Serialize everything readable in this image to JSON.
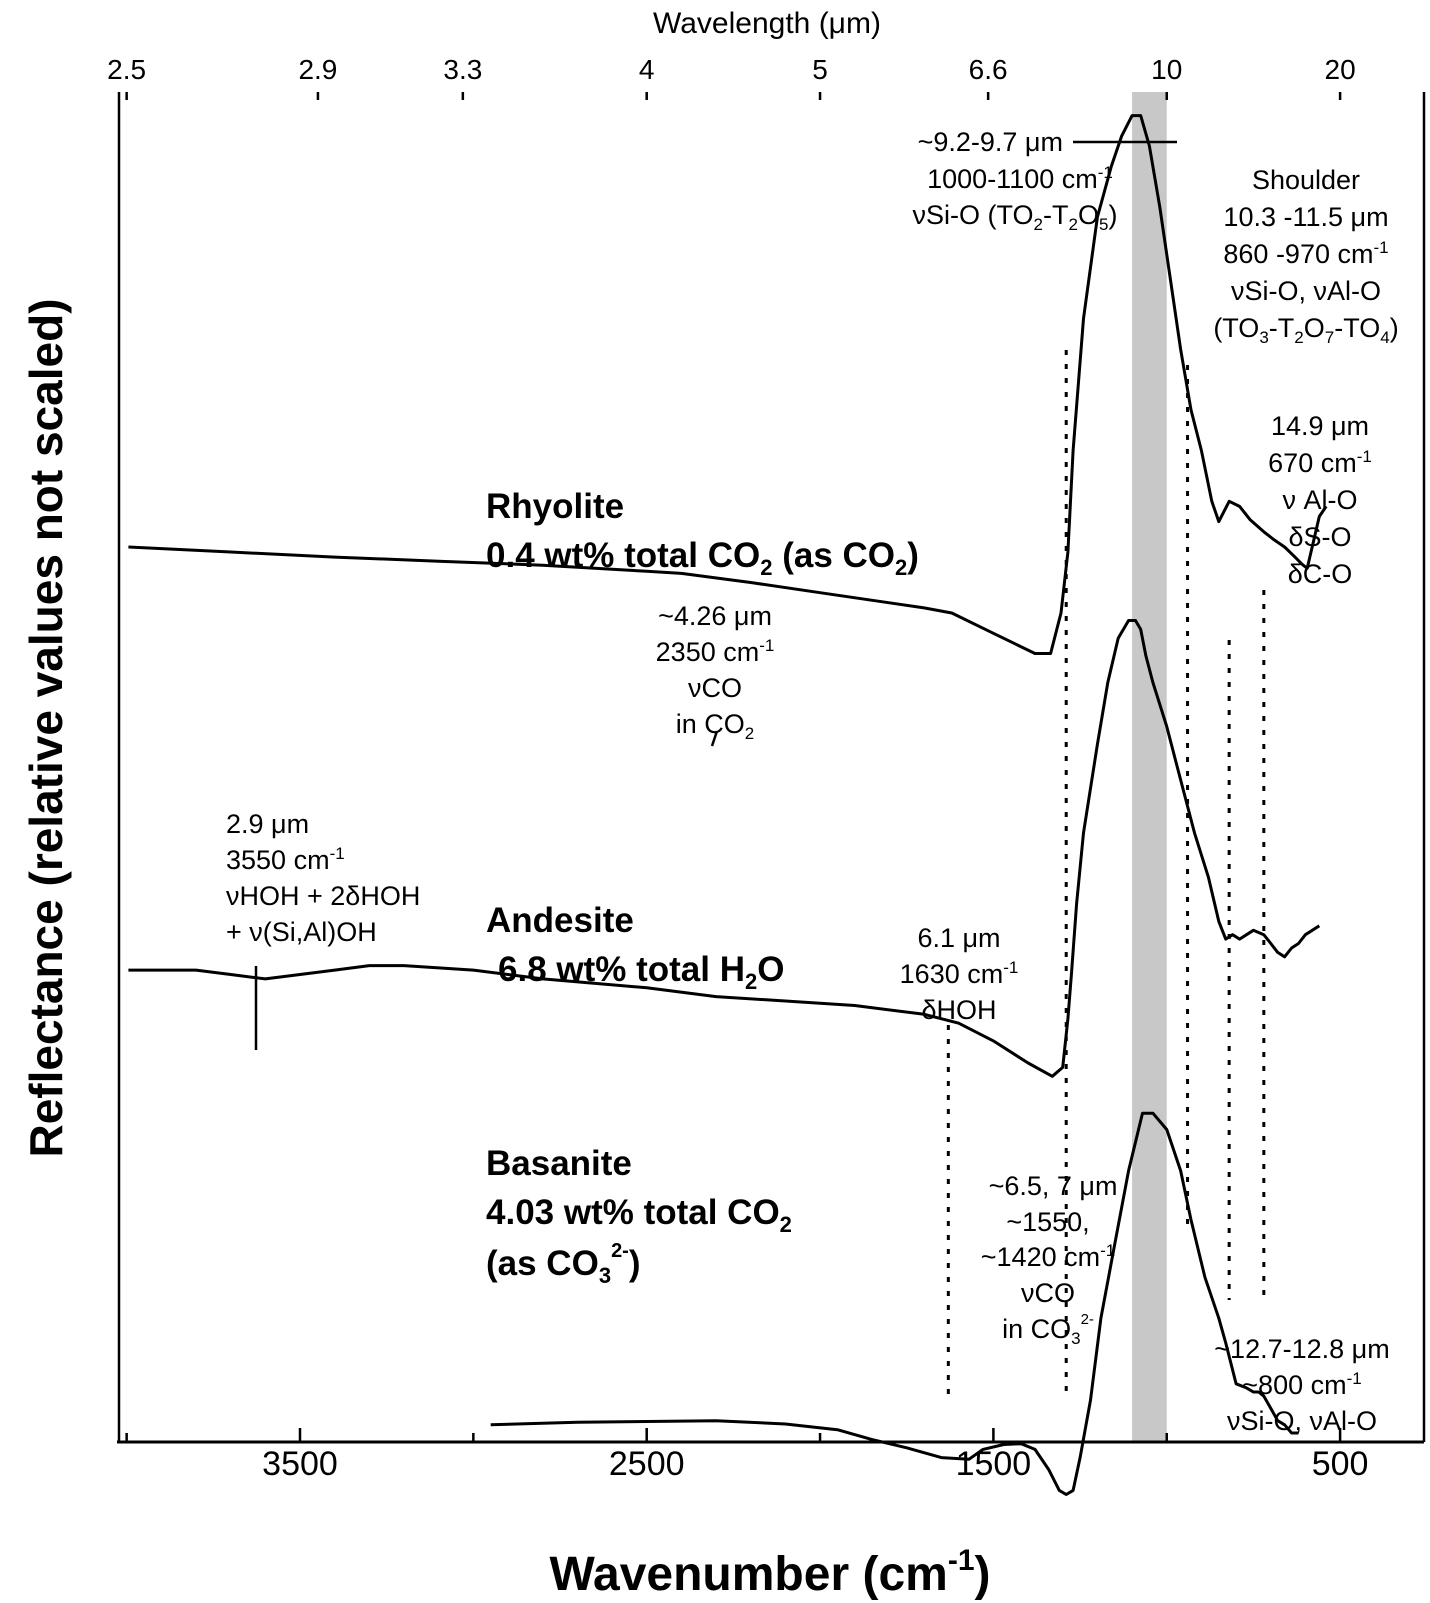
{
  "chart_data": {
    "type": "line",
    "xlabel": "Wavenumber (cm",
    "xlabel_sup": "-1",
    "xlabel_close": ")",
    "x2label": "Wavelength (μm)",
    "ylabel": "Reflectance  (relative values not scaled)",
    "xlim": [
      4000,
      450
    ],
    "x_reversed": true,
    "ylim": [
      0,
      1
    ],
    "y_ticks_shown": false,
    "x_ticks": [
      "3500",
      "2500",
      "1500",
      "500"
    ],
    "x2_ticks": [
      "2.5",
      "2.9",
      "3.3",
      "4",
      "5",
      "6.6",
      "10",
      "20"
    ],
    "shaded_band": {
      "from": 1100,
      "to": 1000
    },
    "marker_lines": [
      1290,
      1630,
      940,
      820,
      720
    ],
    "series": [
      {
        "name": "Rhyolite",
        "x": [
          3995,
          3700,
          3400,
          3100,
          2800,
          2500,
          2400,
          2200,
          2000,
          1800,
          1700,
          1620,
          1500,
          1380,
          1335,
          1305,
          1285,
          1270,
          1240,
          1200,
          1160,
          1130,
          1100,
          1075,
          1050,
          1020,
          990,
          960,
          930,
          900,
          870,
          850,
          820,
          790,
          760,
          720,
          690,
          660,
          630,
          610,
          595,
          560,
          540
        ],
        "y": [
          0.535,
          0.53,
          0.525,
          0.521,
          0.517,
          0.511,
          0.509,
          0.5,
          0.49,
          0.48,
          0.475,
          0.47,
          0.45,
          0.43,
          0.43,
          0.47,
          0.53,
          0.63,
          0.76,
          0.86,
          0.91,
          0.94,
          0.96,
          0.96,
          0.93,
          0.87,
          0.8,
          0.73,
          0.67,
          0.63,
          0.58,
          0.56,
          0.58,
          0.575,
          0.562,
          0.55,
          0.542,
          0.535,
          0.525,
          0.518,
          0.514,
          0.565,
          0.575
        ]
      },
      {
        "name": "Andesite",
        "x": [
          3995,
          3800,
          3700,
          3600,
          3500,
          3400,
          3300,
          3200,
          3000,
          2800,
          2500,
          2300,
          2100,
          1900,
          1700,
          1600,
          1500,
          1400,
          1330,
          1300,
          1285,
          1275,
          1260,
          1240,
          1200,
          1170,
          1140,
          1110,
          1090,
          1075,
          1060,
          1040,
          1000,
          960,
          920,
          880,
          850,
          830,
          810,
          790,
          770,
          750,
          720,
          700,
          680,
          660,
          640,
          620,
          600,
          560
        ],
        "y": [
          0.305,
          0.305,
          0.3,
          0.295,
          0.3,
          0.305,
          0.31,
          0.31,
          0.305,
          0.295,
          0.285,
          0.275,
          0.27,
          0.265,
          0.255,
          0.245,
          0.225,
          0.2,
          0.185,
          0.195,
          0.25,
          0.3,
          0.38,
          0.46,
          0.56,
          0.63,
          0.68,
          0.7,
          0.7,
          0.69,
          0.66,
          0.63,
          0.58,
          0.52,
          0.46,
          0.41,
          0.36,
          0.34,
          0.345,
          0.34,
          0.345,
          0.35,
          0.345,
          0.335,
          0.325,
          0.32,
          0.33,
          0.335,
          0.345,
          0.355
        ]
      },
      {
        "name": "Basanite",
        "x": [
          2950,
          2700,
          2500,
          2300,
          2100,
          1950,
          1850,
          1750,
          1650,
          1570,
          1530,
          1470,
          1420,
          1380,
          1340,
          1310,
          1290,
          1270,
          1250,
          1220,
          1190,
          1150,
          1110,
          1070,
          1040,
          1000,
          960,
          930,
          890,
          850,
          830,
          800,
          770,
          750,
          735,
          720,
          700,
          680,
          660,
          640,
          620
        ],
        "y": [
          0.11,
          0.113,
          0.114,
          0.115,
          0.111,
          0.104,
          0.092,
          0.082,
          0.07,
          0.068,
          0.08,
          0.086,
          0.087,
          0.08,
          0.055,
          0.03,
          0.025,
          0.03,
          0.07,
          0.14,
          0.24,
          0.33,
          0.42,
          0.49,
          0.49,
          0.47,
          0.42,
          0.36,
          0.29,
          0.24,
          0.21,
          0.16,
          0.155,
          0.15,
          0.15,
          0.145,
          0.13,
          0.115,
          0.11,
          0.1,
          0.1
        ]
      }
    ]
  },
  "labels": {
    "rhyolite_line1": "Rhyolite",
    "rhyolite_line2_a": "0.4 wt% total CO",
    "rhyolite_line2_sub1": "2",
    "rhyolite_line2_b": " (as CO",
    "rhyolite_line2_sub2": "2",
    "rhyolite_line2_c": ")",
    "andesite_line1": "Andesite",
    "andesite_line2_a": "6.8 wt% total H",
    "andesite_line2_sub": "2",
    "andesite_line2_b": "O",
    "basanite_line1": "Basanite",
    "basanite_line2_a": "4.03 wt% total CO",
    "basanite_line2_sub": "2",
    "basanite_line3_a": "(as CO",
    "basanite_line3_sub": "3",
    "basanite_line3_sup": "2-",
    "basanite_line3_b": ")"
  },
  "annotations": {
    "peak_sio": {
      "line1": "~9.2-9.7 μm",
      "line2_a": "1000-1100 cm",
      "line2_sup": "-1",
      "line3_a": "νSi-O (TO",
      "line3_sub1": "2",
      "line3_b": "-T",
      "line3_sub2": "2",
      "line3_c": "O",
      "line3_sub3": "5",
      "line3_d": ")"
    },
    "shoulder": {
      "line1": "Shoulder",
      "line2": "10.3 -11.5 μm",
      "line3_a": "860 -970 cm",
      "line3_sup": "-1",
      "line4": "νSi-O, νAl-O",
      "line5_a": "(TO",
      "line5_sub1": "3",
      "line5_b": "-T",
      "line5_sub2": "2",
      "line5_c": "O",
      "line5_sub3": "7",
      "line5_d": "-TO",
      "line5_sub4": "4",
      "line5_e": ")"
    },
    "peak_149": {
      "line1": "14.9 μm",
      "line2_a": "670 cm",
      "line2_sup": "-1",
      "line3": "ν Al-O",
      "line4": "δS-O",
      "line5": "δC-O"
    },
    "co2": {
      "line1": "~4.26 μm",
      "line2_a": "2350 cm",
      "line2_sup": "-1",
      "line3": "νCO",
      "line4_a": "in CO",
      "line4_sub": "2"
    },
    "water": {
      "line1": "2.9 μm",
      "line2_a": "3550 cm",
      "line2_sup": "-1",
      "line3": "νHOH + 2δHOH",
      "line4": "+ ν(Si,Al)OH"
    },
    "hoh": {
      "line1": "6.1 μm",
      "line2_a": "1630 cm",
      "line2_sup": "-1",
      "line3": "δHOH"
    },
    "carbonate": {
      "line1": "~6.5, 7 μm",
      "line2": "~1550,",
      "line3_a": "~1420 cm",
      "line3_sup": "-1",
      "line4": "νCO",
      "line5_a": "in CO",
      "line5_sub": "3",
      "line5_sup": "2-"
    },
    "peak_127": {
      "line1": "~12.7-12.8 μm",
      "line2_a": "~800 cm",
      "line2_sup": "-1",
      "line3": "νSi-O, νAl-O"
    }
  }
}
